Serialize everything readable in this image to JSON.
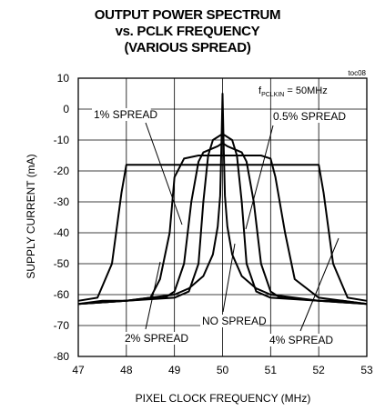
{
  "chart_data": {
    "type": "line",
    "title_lines": [
      "OUTPUT POWER SPECTRUM",
      "vs. PCLK FREQUENCY",
      "(VARIOUS SPREAD)"
    ],
    "xlabel": "PIXEL CLOCK FREQUENCY (MHz)",
    "ylabel": "SUPPLY CURRENT (mA)",
    "xlim": [
      47,
      53
    ],
    "ylim": [
      -80,
      10
    ],
    "xticks": [
      47,
      48,
      49,
      50,
      51,
      52,
      53
    ],
    "yticks": [
      10,
      0,
      -10,
      -20,
      -30,
      -40,
      -50,
      -60,
      -70,
      -80
    ],
    "grid": true,
    "figure_id": "toc08",
    "condition": {
      "prefix": "f",
      "subscript": "PCLKIN",
      "suffix": " = 50MHz"
    },
    "series": [
      {
        "name": "NO SPREAD",
        "x": [
          47.0,
          47.5,
          48.0,
          48.5,
          49.0,
          49.3,
          49.6,
          49.8,
          49.9,
          49.95,
          49.98,
          50.0,
          50.02,
          50.05,
          50.1,
          50.2,
          50.4,
          50.7,
          51.0,
          51.5,
          52.0,
          52.5,
          53.0
        ],
        "y": [
          -63,
          -62,
          -62,
          -61,
          -60,
          -58,
          -54,
          -47,
          -38,
          -28,
          -10,
          5,
          -10,
          -28,
          -38,
          -47,
          -54,
          -58,
          -60,
          -61,
          -62,
          -62,
          -63
        ]
      },
      {
        "name": "0.5% SPREAD",
        "x": [
          47.0,
          48.0,
          49.0,
          49.3,
          49.5,
          49.6,
          49.7,
          49.8,
          49.9,
          50.0,
          50.1,
          50.2,
          50.3,
          50.4,
          50.5,
          50.7,
          51.0,
          52.0,
          53.0
        ],
        "y": [
          -63,
          -62,
          -61,
          -59,
          -50,
          -30,
          -15,
          -10,
          -9,
          -8,
          -9,
          -10,
          -15,
          -30,
          -50,
          -59,
          -61,
          -62,
          -63
        ]
      },
      {
        "name": "1% SPREAD",
        "x": [
          47.0,
          48.0,
          48.8,
          49.0,
          49.2,
          49.35,
          49.5,
          49.6,
          49.75,
          49.9,
          50.0,
          50.1,
          50.25,
          50.4,
          50.5,
          50.65,
          50.8,
          51.0,
          51.2,
          52.0,
          53.0
        ],
        "y": [
          -63,
          -62,
          -61,
          -59,
          -50,
          -30,
          -17,
          -14,
          -13,
          -12,
          -11,
          -12,
          -13,
          -14,
          -17,
          -30,
          -50,
          -59,
          -61,
          -62,
          -63
        ]
      },
      {
        "name": "2% SPREAD",
        "x": [
          47.0,
          48.0,
          48.5,
          48.7,
          48.9,
          49.0,
          49.2,
          49.5,
          49.8,
          50.0,
          50.2,
          50.5,
          50.8,
          51.0,
          51.1,
          51.3,
          51.5,
          52.0,
          53.0
        ],
        "y": [
          -63,
          -62,
          -61,
          -55,
          -40,
          -22,
          -16,
          -15,
          -15,
          -15,
          -15,
          -15,
          -15,
          -16,
          -22,
          -40,
          -55,
          -61,
          -63
        ]
      },
      {
        "name": "4% SPREAD",
        "x": [
          47.0,
          47.4,
          47.7,
          47.9,
          48.0,
          48.5,
          49.0,
          49.5,
          50.0,
          50.5,
          51.0,
          51.5,
          52.0,
          52.1,
          52.3,
          52.6,
          53.0
        ],
        "y": [
          -62,
          -61,
          -50,
          -27,
          -18,
          -18,
          -18,
          -18,
          -18,
          -18,
          -18,
          -18,
          -18,
          -27,
          -50,
          -61,
          -62
        ]
      }
    ],
    "annotations": [
      "1% SPREAD",
      "0.5% SPREAD",
      "2% SPREAD",
      "NO SPREAD",
      "4% SPREAD"
    ]
  }
}
